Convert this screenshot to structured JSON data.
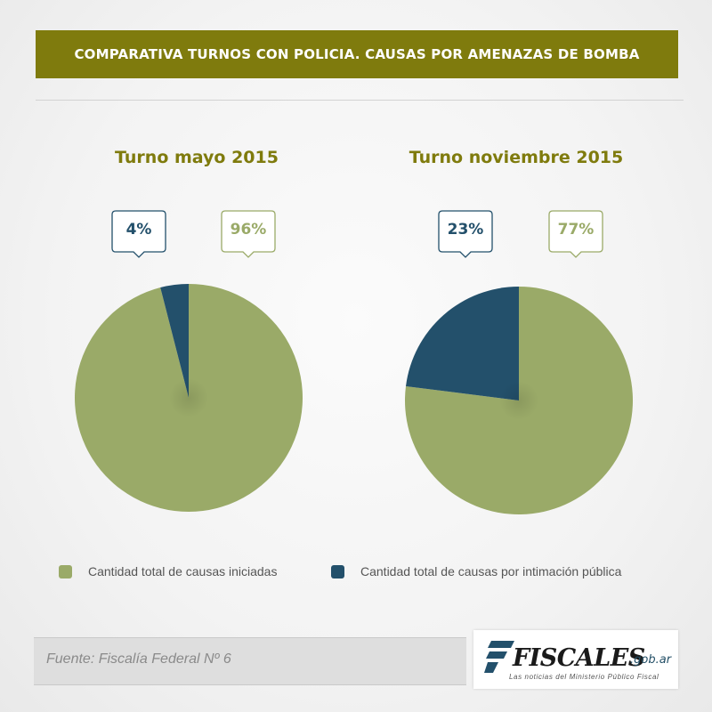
{
  "header": {
    "title": "COMPARATIVA TURNOS CON POLICIA. CAUSAS POR AMENAZAS DE BOMBA"
  },
  "colors": {
    "green": "#9aaa68",
    "navy": "#23506b",
    "olive": "#7f7b0d"
  },
  "chart_data": [
    {
      "type": "pie",
      "title": "Turno mayo 2015",
      "slices": [
        {
          "label": "Cantidad total de causas iniciadas",
          "value": 96,
          "display": "96%",
          "color": "#9aaa68"
        },
        {
          "label": "Cantidad total de causas por intimación pública",
          "value": 4,
          "display": "4%",
          "color": "#23506b"
        }
      ]
    },
    {
      "type": "pie",
      "title": "Turno noviembre 2015",
      "slices": [
        {
          "label": "Cantidad total de causas iniciadas",
          "value": 77,
          "display": "77%",
          "color": "#9aaa68"
        },
        {
          "label": "Cantidad total de causas por intimación pública",
          "value": 23,
          "display": "23%",
          "color": "#23506b"
        }
      ]
    }
  ],
  "legend": [
    {
      "label": "Cantidad total de causas iniciadas",
      "color": "#9aaa68"
    },
    {
      "label": "Cantidad total de causas por intimación pública",
      "color": "#23506b"
    }
  ],
  "footer": {
    "source": "Fuente: Fiscalía Federal Nº 6"
  },
  "logo": {
    "name": "FISCALES",
    "suffix": ".gob.ar",
    "tagline": "Las noticias del Ministerio Público Fiscal"
  }
}
